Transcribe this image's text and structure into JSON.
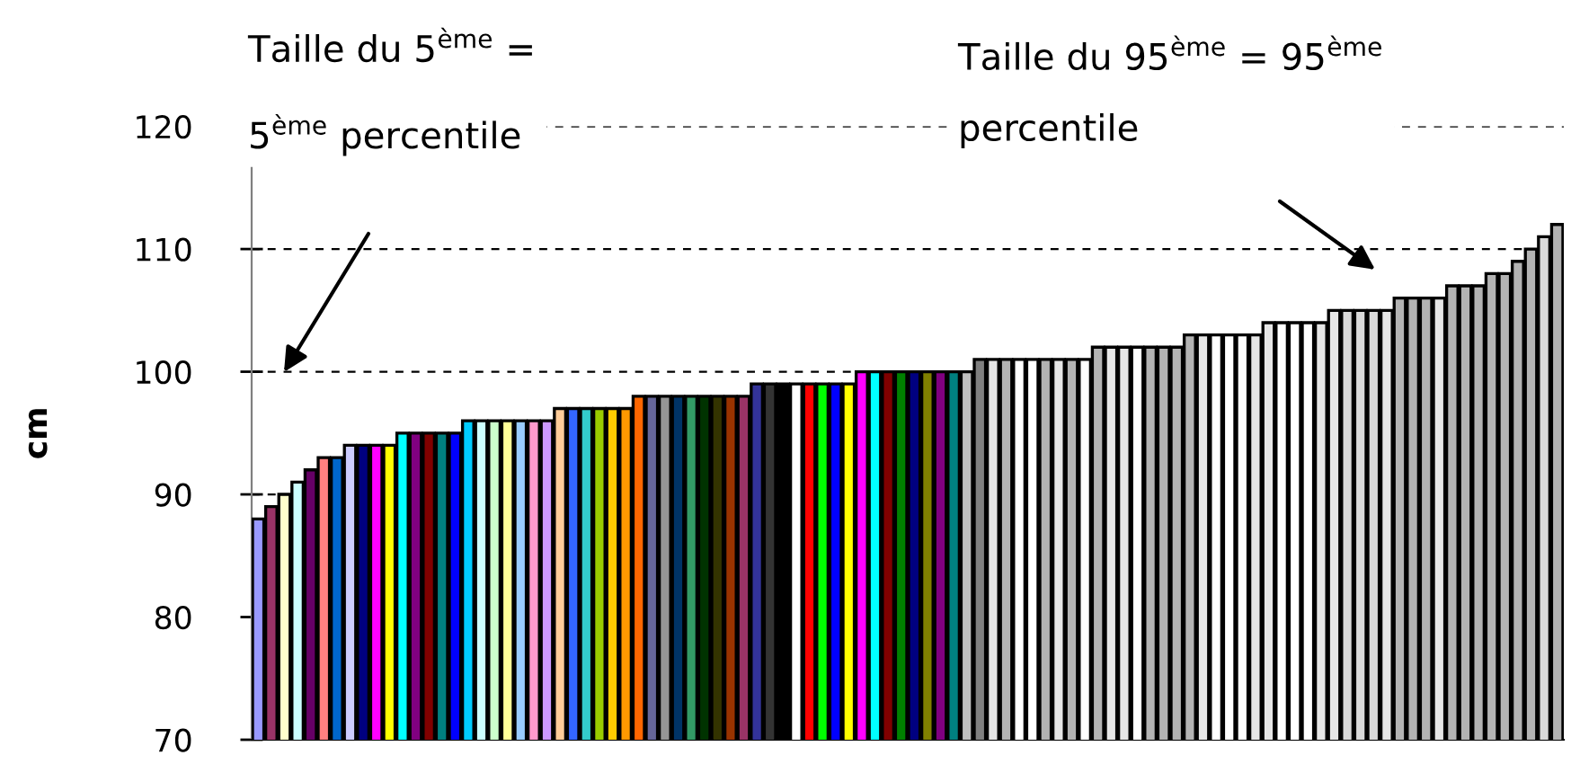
{
  "chart_data": {
    "type": "bar",
    "ylabel": "cm",
    "categories": [
      null,
      null,
      null,
      null,
      null,
      null,
      null,
      null,
      null,
      null,
      null,
      null,
      null,
      null,
      null,
      null,
      null,
      null,
      null,
      null,
      null,
      null,
      null,
      null,
      null,
      null,
      null,
      null,
      null,
      null,
      null,
      null,
      null,
      null,
      null,
      null,
      null,
      null,
      null,
      null,
      null,
      null,
      null,
      null,
      null,
      null,
      null,
      null,
      null,
      null,
      null,
      null,
      null,
      null,
      null,
      null,
      null,
      null,
      null,
      null,
      null,
      null,
      null,
      null,
      null,
      null,
      null,
      null,
      null,
      null,
      null,
      null,
      null,
      null,
      null,
      null,
      null,
      null,
      null,
      null,
      null,
      null,
      null,
      null,
      null,
      null,
      null,
      null,
      null,
      null,
      null,
      null,
      null,
      null,
      null,
      null,
      null,
      null,
      null,
      null
    ],
    "values": [
      88,
      89,
      90,
      91,
      92,
      93,
      93,
      94,
      94,
      94,
      94,
      95,
      95,
      95,
      95,
      95,
      96,
      96,
      96,
      96,
      96,
      96,
      96,
      97,
      97,
      97,
      97,
      97,
      97,
      98,
      98,
      98,
      98,
      98,
      98,
      98,
      98,
      98,
      99,
      99,
      99,
      99,
      99,
      99,
      99,
      99,
      100,
      100,
      100,
      100,
      100,
      100,
      100,
      100,
      100,
      101,
      101,
      101,
      101,
      101,
      101,
      101,
      101,
      101,
      102,
      102,
      102,
      102,
      102,
      102,
      102,
      103,
      103,
      103,
      103,
      103,
      103,
      104,
      104,
      104,
      104,
      104,
      105,
      105,
      105,
      105,
      105,
      106,
      106,
      106,
      106,
      107,
      107,
      107,
      108,
      108,
      109,
      110,
      111,
      112
    ],
    "colors": [
      "#9999ff",
      "#993366",
      "#ffffcc",
      "#ccffff",
      "#660066",
      "#ff8080",
      "#0066cc",
      "#ccccff",
      "#000080",
      "#ff00ff",
      "#ffff00",
      "#00ffff",
      "#800080",
      "#800000",
      "#008080",
      "#0000ff",
      "#00ccff",
      "#ccffff",
      "#ccffcc",
      "#ffff99",
      "#99ccff",
      "#ff99cc",
      "#cc99ff",
      "#ffcc99",
      "#3366ff",
      "#33cccc",
      "#99cc00",
      "#ffcc00",
      "#ff9900",
      "#ff6600",
      "#666699",
      "#969696",
      "#003366",
      "#339966",
      "#003300",
      "#333300",
      "#993300",
      "#993366",
      "#333399",
      "#333333",
      "#000000",
      "#ffffff",
      "#ff0000",
      "#00ff00",
      "#0000ff",
      "#ffff00",
      "#ff00ff",
      "#00ffff",
      "#800000",
      "#008000",
      "#000080",
      "#808000",
      "#800080",
      "#008080",
      "#c0c0c0",
      "#808080",
      "#e6e6e6",
      "#b3b3b3",
      "#ffffff",
      "#ffffff",
      "#b3b3b3",
      "#e6e6e6",
      "#b3b3b3",
      "#ffffff",
      "#b3b3b3",
      "#e6e6e6",
      "#e6e6e6",
      "#ffffff",
      "#b3b3b3",
      "#b3b3b3",
      "#b3b3b3",
      "#b3b3b3",
      "#e6e6e6",
      "#ffffff",
      "#ffffff",
      "#ffffff",
      "#e6e6e6",
      "#e6e6e6",
      "#ffffff",
      "#ffffff",
      "#ffffff",
      "#e6e6e6",
      "#e6e6e6",
      "#d9d9d9",
      "#d9d9d9",
      "#d9d9d9",
      "#e6e6e6",
      "#b3b3b3",
      "#b3b3b3",
      "#b3b3b3",
      "#e6e6e6",
      "#b3b3b3",
      "#b3b3b3",
      "#b3b3b3",
      "#b3b3b3",
      "#b3b3b3",
      "#b3b3b3",
      "#b3b3b3",
      "#d9d9d9",
      "#b3b3b3"
    ],
    "ylim": [
      70,
      120
    ],
    "yticks": [
      70,
      80,
      90,
      100,
      110,
      120
    ],
    "grid": "y",
    "annotations": [
      "Taille du 5$^{ème}$ =\n5$^{ème}$ percentile",
      "Taille du 95$^{ème}$ = 95$^{ème}$\npercentile"
    ]
  }
}
